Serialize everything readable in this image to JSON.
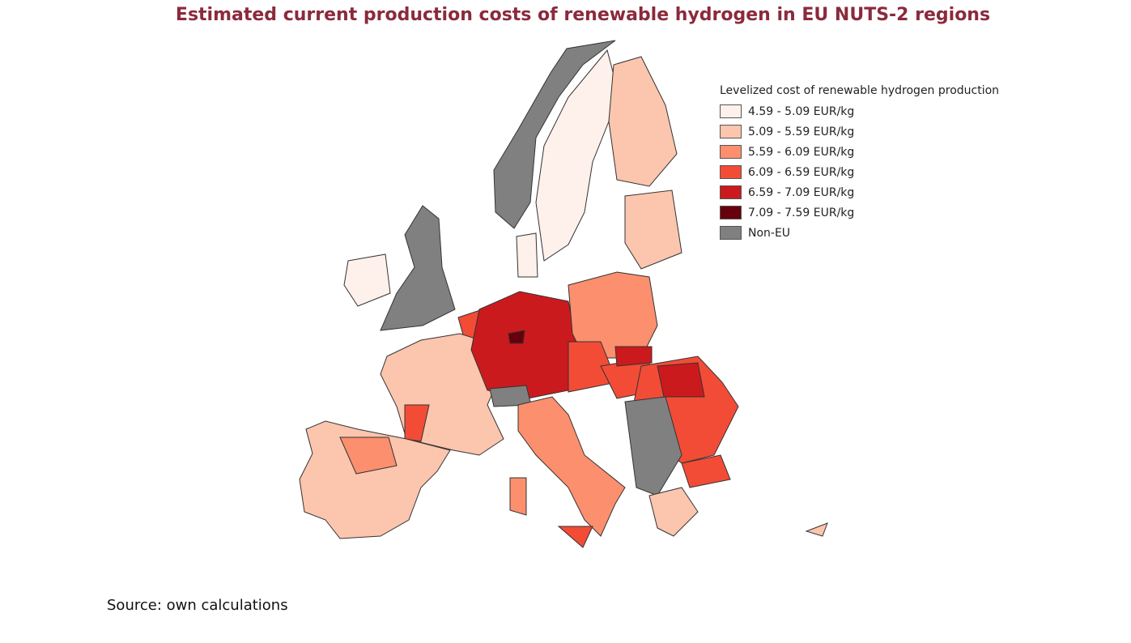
{
  "title": "Estimated current production costs of renewable hydrogen in EU NUTS-2 regions",
  "legend": {
    "title": "Levelized cost of renewable hydrogen production",
    "items": [
      {
        "label": "4.59 - 5.09 EUR/kg",
        "color": "#fef0eb"
      },
      {
        "label": "5.09 - 5.59 EUR/kg",
        "color": "#fcc5ae"
      },
      {
        "label": "5.59 - 6.09 EUR/kg",
        "color": "#fb8f6e"
      },
      {
        "label": "6.09 - 6.59 EUR/kg",
        "color": "#f24c36"
      },
      {
        "label": "6.59 - 7.09 EUR/kg",
        "color": "#cb1a1d"
      },
      {
        "label": "7.09 - 7.59 EUR/kg",
        "color": "#67000d"
      },
      {
        "label": "Non-EU",
        "color": "#808080"
      }
    ]
  },
  "source": "Source: own calculations"
}
